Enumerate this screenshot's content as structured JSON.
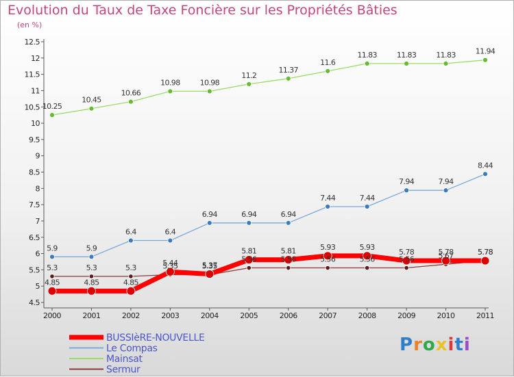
{
  "header": {
    "title": "Evolution du Taux de Taxe Foncière sur les Propriétés Bâties",
    "subtitle": "(en %)"
  },
  "logo": {
    "text": "Proxiti"
  },
  "chart_data": {
    "type": "line",
    "title": "Evolution du Taux de Taxe Foncière sur les Propriétés Bâties",
    "ylabel": "(en %)",
    "categories": [
      "2000",
      "2001",
      "2002",
      "2003",
      "2004",
      "2005",
      "2006",
      "2007",
      "2008",
      "2009",
      "2010",
      "2011"
    ],
    "ylim": [
      4.5,
      12.5
    ],
    "yticks": [
      "4.5",
      "5",
      "5.5",
      "6",
      "6.5",
      "7",
      "7.5",
      "8",
      "8.5",
      "9",
      "9.5",
      "10",
      "10.5",
      "11",
      "11.5",
      "12",
      "12.5"
    ],
    "grid": false,
    "legend_position": "bottom-left",
    "series": [
      {
        "name": "Mainsat",
        "color": "#99dd66",
        "marker": "#66bb33",
        "width": 1.3,
        "r": 3.5,
        "values": [
          10.25,
          10.45,
          10.66,
          10.98,
          10.98,
          11.2,
          11.37,
          11.6,
          11.83,
          11.83,
          11.83,
          11.94
        ],
        "labels": [
          "10.25",
          "10.45",
          "10.66",
          "10.98",
          "10.98",
          "11.2",
          "11.37",
          "11.6",
          "11.83",
          "11.83",
          "11.83",
          "11.94"
        ]
      },
      {
        "name": "Le Compas",
        "color": "#7aa8d8",
        "marker": "#3a7bc0",
        "width": 1.3,
        "r": 3.5,
        "values": [
          5.9,
          5.9,
          6.4,
          6.4,
          6.94,
          6.94,
          6.94,
          7.44,
          7.44,
          7.94,
          7.94,
          8.44
        ],
        "labels": [
          "5.9",
          "5.9",
          "6.4",
          "6.4",
          "6.94",
          "6.94",
          "6.94",
          "7.44",
          "7.44",
          "7.94",
          "7.94",
          "8.44"
        ]
      },
      {
        "name": "Sermur",
        "color": "#8b3a3a",
        "marker": "#5a1a1a",
        "width": 1.3,
        "r": 3.2,
        "values": [
          5.3,
          5.3,
          5.3,
          5.35,
          5.35,
          5.56,
          5.56,
          5.56,
          5.56,
          5.56,
          5.67,
          5.78
        ],
        "labels": [
          "5.3",
          "5.3",
          "5.3",
          "5.35",
          "5.35",
          "5.56",
          "5.56",
          "5.56",
          "5.56",
          "5.56",
          "5.67",
          "5.78"
        ]
      },
      {
        "name": "BUSSIèRE-NOUVELLE",
        "color": "#ff0000",
        "marker": "#dd0000",
        "width": 7,
        "r": 6,
        "values": [
          4.85,
          4.85,
          4.85,
          5.44,
          5.37,
          5.81,
          5.81,
          5.93,
          5.93,
          5.78,
          5.78,
          5.78
        ],
        "labels": [
          "4.85",
          "4.85",
          "4.85",
          "5.44",
          "5.37",
          "5.81",
          "5.81",
          "5.93",
          "5.93",
          "5.78",
          "5.78",
          "5.78"
        ]
      }
    ],
    "legend_order": [
      "BUSSIèRE-NOUVELLE",
      "Le Compas",
      "Mainsat",
      "Sermur"
    ]
  }
}
